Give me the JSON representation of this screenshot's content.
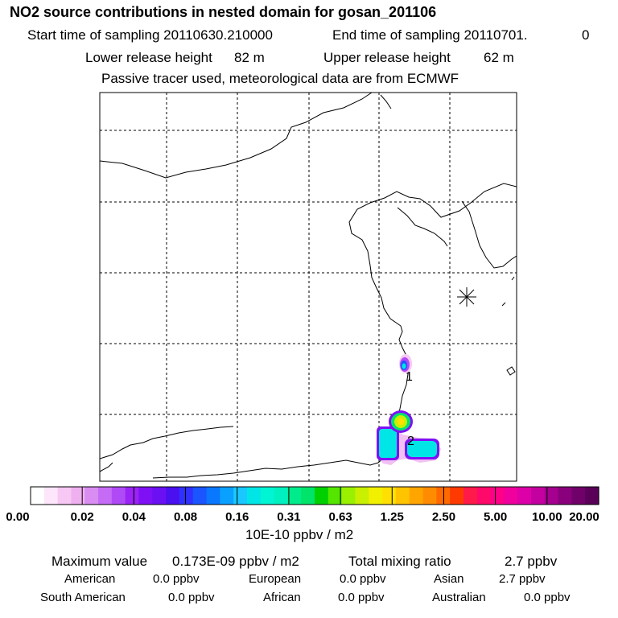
{
  "header": {
    "title": "NO2 source contributions in nested domain for gosan_201106",
    "start_label": "Start time of sampling 20110630.210000",
    "end_label": "End time of sampling 20110701.",
    "end_value": "0",
    "lower_label": "Lower release height",
    "lower_value": "82 m",
    "upper_label": "Upper release height",
    "upper_value": "62 m",
    "tracer_note": "Passive tracer used, meteorological data are from ECMWF"
  },
  "chart_data": {
    "type": "heatmap",
    "title": "NO2 source contributions in nested domain for gosan_201106",
    "colorbar": {
      "unit_label": "10E-10 ppbv / m2",
      "tick_labels": [
        "0.00",
        "0.02",
        "0.04",
        "0.08",
        "0.16",
        "0.31",
        "0.63",
        "1.25",
        "2.50",
        "5.00",
        "10.00",
        "20.00"
      ],
      "colors": [
        "#ffffff",
        "#fde6fb",
        "#f6c8f3",
        "#efb0ef",
        "#d98df2",
        "#c56bf5",
        "#b04af7",
        "#9a23f5",
        "#7f10f5",
        "#6a10f3",
        "#4a10ef",
        "#3030ff",
        "#1a55ff",
        "#0a77ff",
        "#0aa0ff",
        "#19c8ff",
        "#00e6e6",
        "#00f5d4",
        "#00f0c0",
        "#00ec8c",
        "#00e46a",
        "#00d000",
        "#55e600",
        "#99f000",
        "#c8f000",
        "#f0f000",
        "#ffe000",
        "#ffc400",
        "#ffa500",
        "#ff8c00",
        "#ff6a00",
        "#ff3a00",
        "#ff1a4a",
        "#ff0a6a",
        "#ff0088",
        "#f0009c",
        "#dd00a8",
        "#c400a0",
        "#a50090",
        "#8a007c",
        "#70006a",
        "#5a0058"
      ]
    },
    "receptor_marker": "*",
    "source_labels": [
      "1",
      "2"
    ],
    "hotspots": [
      {
        "label": "1",
        "max_value": 1.25
      },
      {
        "label": "2",
        "max_value": 1.73
      }
    ]
  },
  "footer": {
    "max_label": "Maximum value",
    "max_value": "0.173E-09 ppbv / m2",
    "total_label": "Total mixing ratio",
    "total_value": "2.7 ppbv",
    "regions": [
      {
        "name": "American",
        "value": "0.0 ppbv"
      },
      {
        "name": "European",
        "value": "0.0 ppbv"
      },
      {
        "name": "Asian",
        "value": "2.7 ppbv"
      },
      {
        "name": "South American",
        "value": "0.0 ppbv"
      },
      {
        "name": "African",
        "value": "0.0 ppbv"
      },
      {
        "name": "Australian",
        "value": "0.0 ppbv"
      }
    ]
  }
}
